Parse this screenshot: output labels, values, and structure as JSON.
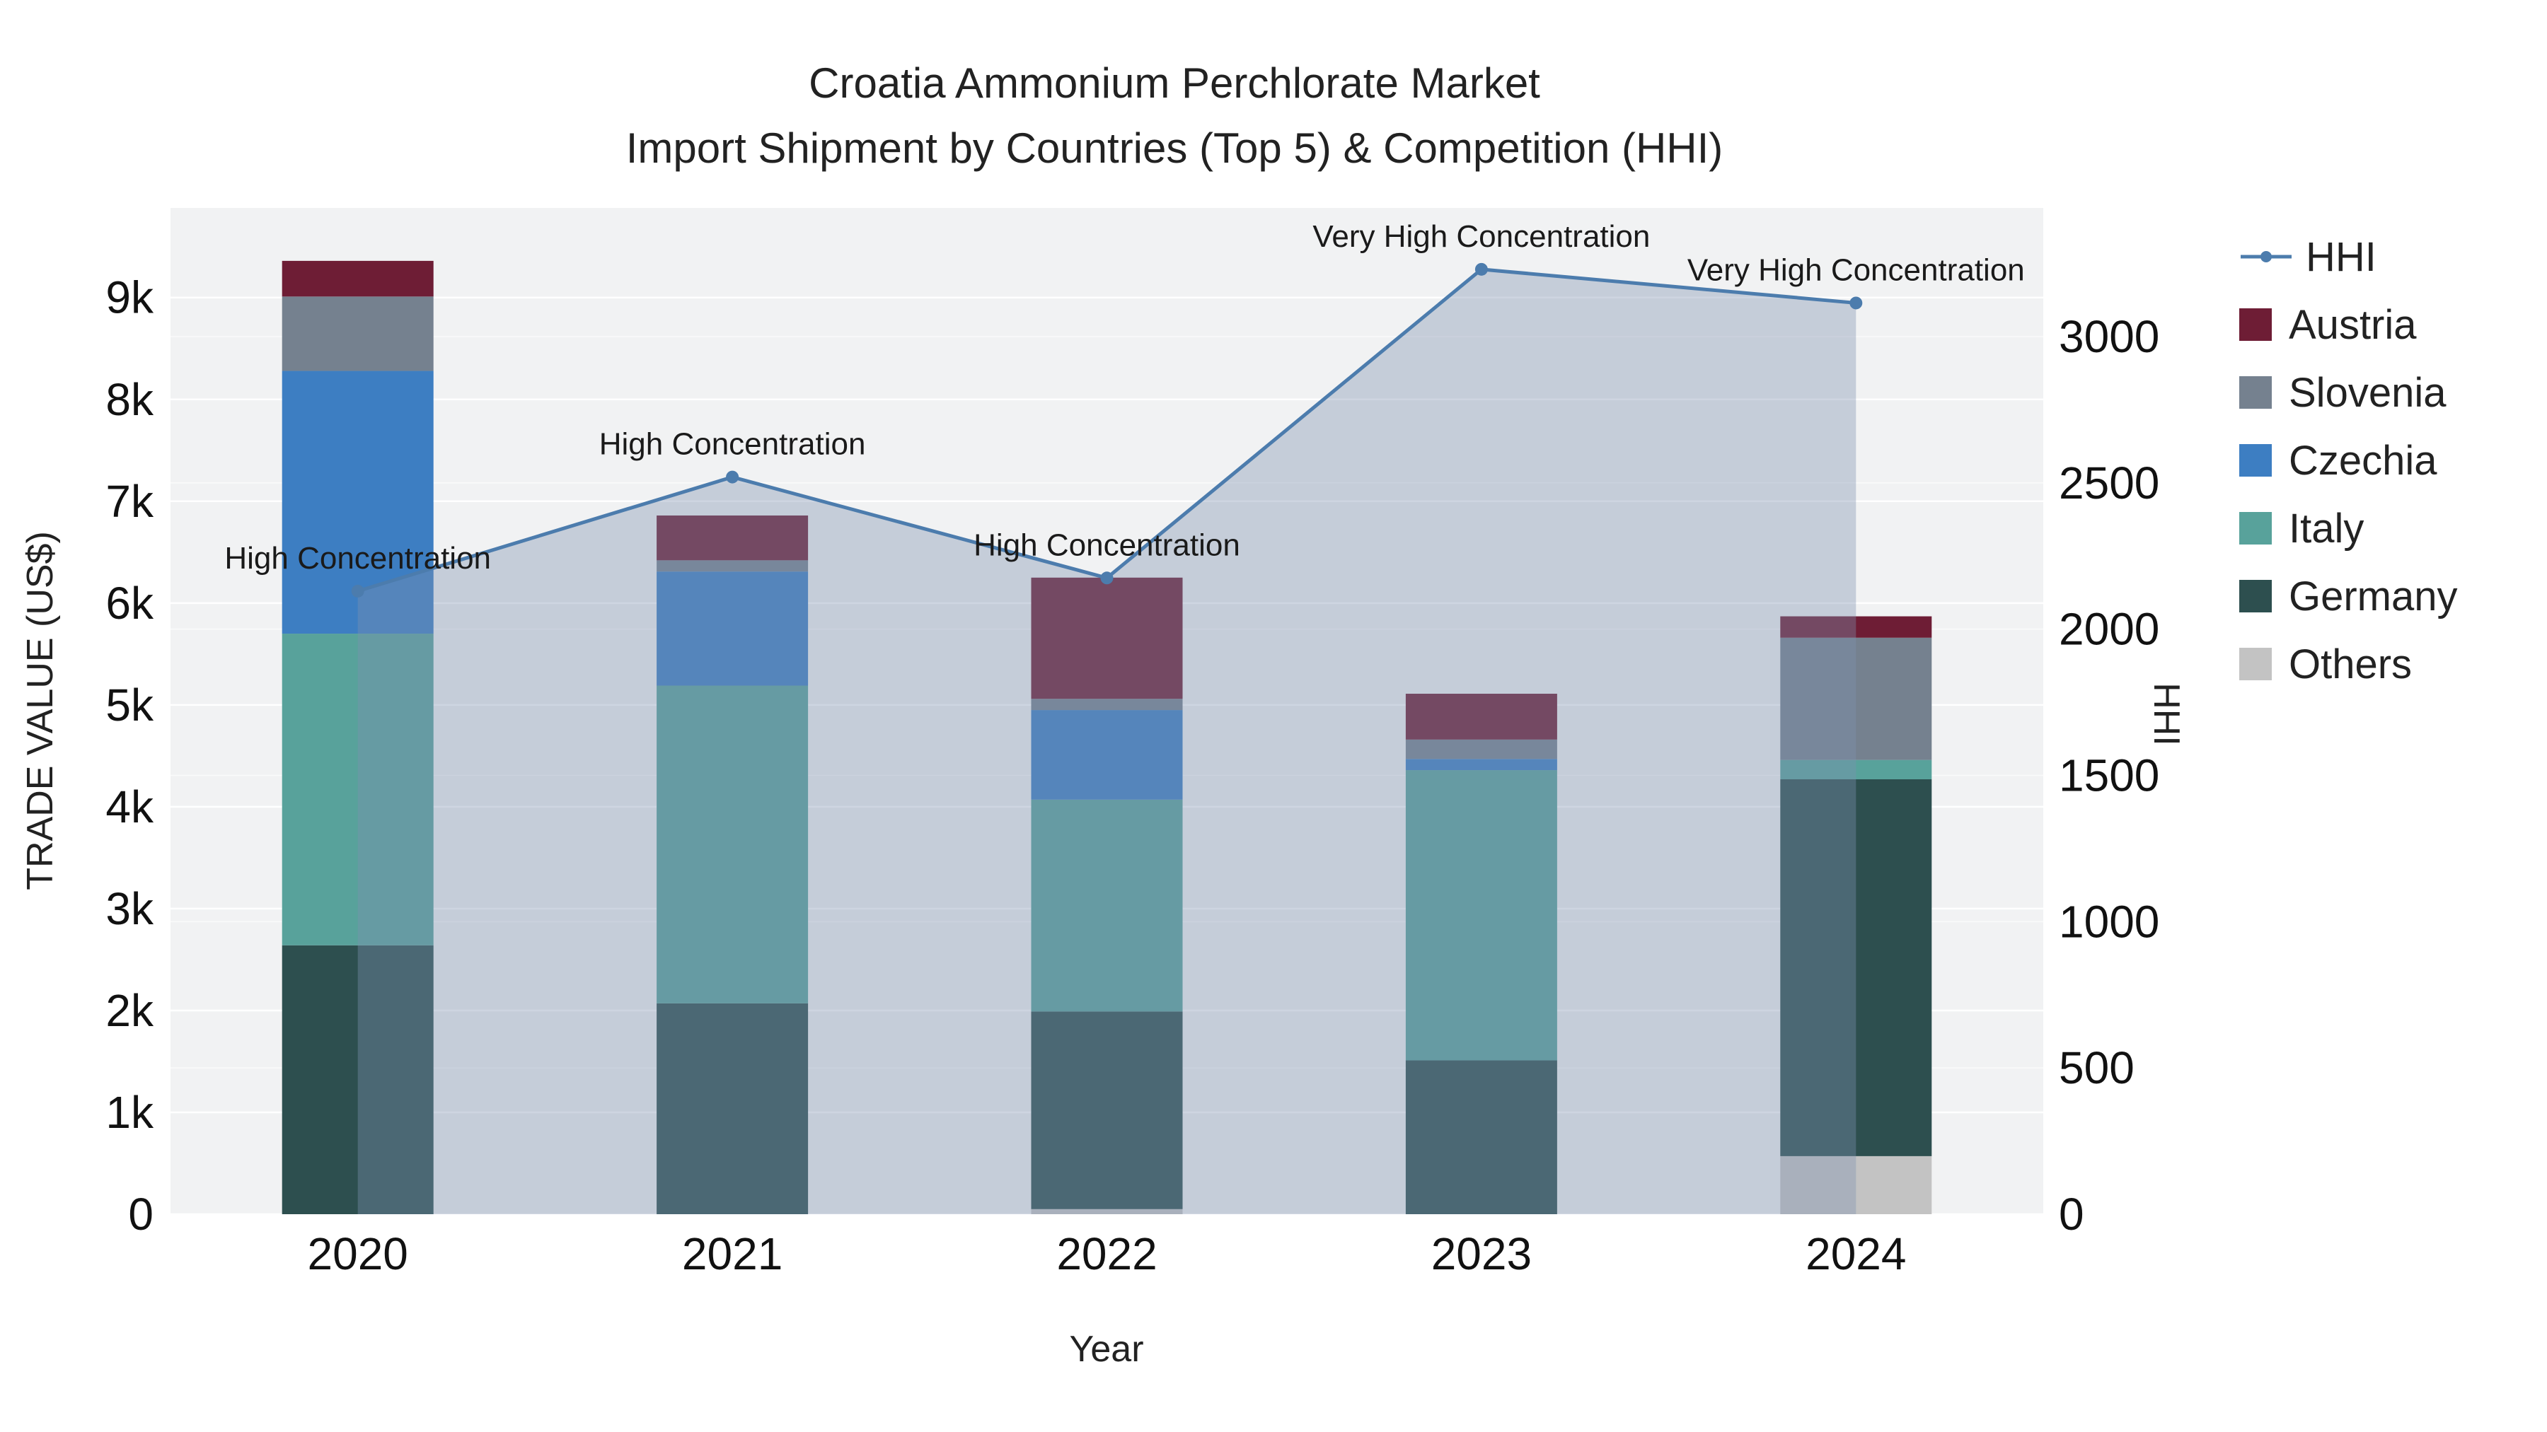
{
  "title": {
    "line1": "Croatia Ammonium Perchlorate Market",
    "line2": "Import Shipment by Countries (Top 5) & Competition (HHI)"
  },
  "chart_data": {
    "type": "bar",
    "subtype": "stacked-bar-with-line",
    "x_label": "Year",
    "y_left_label": "TRADE VALUE (US$)",
    "y_right_label": "HHI",
    "categories": [
      "2020",
      "2021",
      "2022",
      "2023",
      "2024"
    ],
    "bar_series": [
      {
        "name": "Others",
        "color": "#c3c3c3",
        "values": [
          0,
          0,
          50,
          0,
          570
        ]
      },
      {
        "name": "Germany",
        "color": "#2d4f4f",
        "values": [
          2640,
          2070,
          1940,
          1510,
          3700
        ]
      },
      {
        "name": "Italy",
        "color": "#58a29b",
        "values": [
          3060,
          3120,
          2080,
          2850,
          190
        ]
      },
      {
        "name": "Czechia",
        "color": "#3d7ec2",
        "values": [
          2580,
          1120,
          880,
          110,
          0
        ]
      },
      {
        "name": "Slovenia",
        "color": "#75818f",
        "values": [
          730,
          110,
          110,
          190,
          1200
        ]
      },
      {
        "name": "Austria",
        "color": "#6e1d35",
        "values": [
          350,
          440,
          1190,
          450,
          210
        ]
      }
    ],
    "line_series": {
      "name": "HHI",
      "values": [
        2130,
        2520,
        2175,
        3230,
        3115
      ],
      "color": "#4c7cad",
      "fill_color": "rgba(125,144,176,0.38)",
      "axis": "right"
    },
    "annotations": [
      {
        "index": 0,
        "text": "High Concentration"
      },
      {
        "index": 1,
        "text": "High Concentration"
      },
      {
        "index": 2,
        "text": "High Concentration"
      },
      {
        "index": 3,
        "text": "Very High Concentration"
      },
      {
        "index": 4,
        "text": "Very High Concentration"
      }
    ],
    "y_left_axis": {
      "max": 9880,
      "ticks": [
        {
          "value": 0,
          "label": "0"
        },
        {
          "value": 1000,
          "label": "1k"
        },
        {
          "value": 2000,
          "label": "2k"
        },
        {
          "value": 3000,
          "label": "3k"
        },
        {
          "value": 4000,
          "label": "4k"
        },
        {
          "value": 5000,
          "label": "5k"
        },
        {
          "value": 6000,
          "label": "6k"
        },
        {
          "value": 7000,
          "label": "7k"
        },
        {
          "value": 8000,
          "label": "8k"
        },
        {
          "value": 9000,
          "label": "9k"
        }
      ]
    },
    "y_right_axis": {
      "max": 3440,
      "ticks": [
        {
          "value": 0,
          "label": "0"
        },
        {
          "value": 500,
          "label": "500"
        },
        {
          "value": 1000,
          "label": "1000"
        },
        {
          "value": 1500,
          "label": "1500"
        },
        {
          "value": 2000,
          "label": "2000"
        },
        {
          "value": 2500,
          "label": "2500"
        },
        {
          "value": 3000,
          "label": "3000"
        }
      ]
    },
    "legend": [
      {
        "label": "HHI",
        "type": "line",
        "color": "#4c7cad"
      },
      {
        "label": "Austria",
        "type": "swatch",
        "color": "#6e1d35"
      },
      {
        "label": "Slovenia",
        "type": "swatch",
        "color": "#75818f"
      },
      {
        "label": "Czechia",
        "type": "swatch",
        "color": "#3d7ec2"
      },
      {
        "label": "Italy",
        "type": "swatch",
        "color": "#58a29b"
      },
      {
        "label": "Germany",
        "type": "swatch",
        "color": "#2d4f4f"
      },
      {
        "label": "Others",
        "type": "swatch",
        "color": "#c3c3c3"
      }
    ],
    "colors": {
      "plot_background": "#f1f2f3",
      "gridline": "#ffffff",
      "tick_text": "#111111",
      "annotation_text": "#1a1a1a"
    }
  }
}
